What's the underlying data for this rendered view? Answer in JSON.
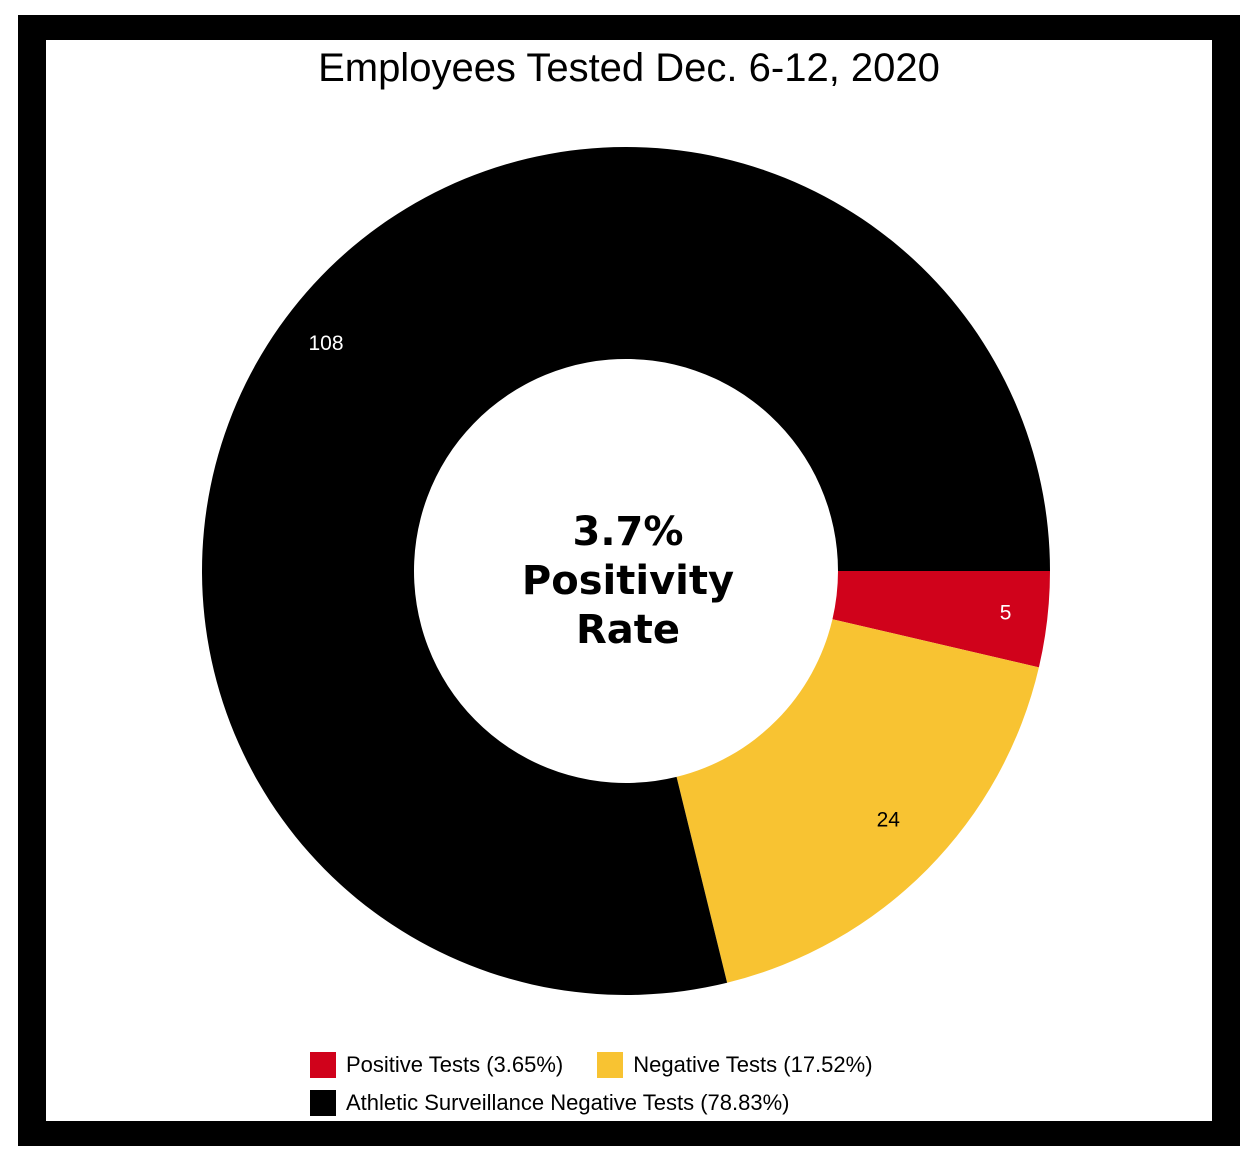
{
  "chart_data": {
    "type": "pie",
    "title": "Employees Tested Dec. 6-12, 2020",
    "center_text": [
      "3.7%",
      "Positivity",
      "Rate"
    ],
    "donut": true,
    "slices": [
      {
        "label": "Positive Tests (3.65%)",
        "value": 5,
        "data_label": "5",
        "color": "#d0021b"
      },
      {
        "label": "Negative Tests (17.52%)",
        "value": 24,
        "data_label": "24",
        "color": "#f8c332"
      },
      {
        "label": "Athletic Surveillance Negative Tests (78.83%)",
        "value": 108,
        "data_label": "108",
        "color": "#000000"
      }
    ],
    "legend_position": "bottom"
  }
}
